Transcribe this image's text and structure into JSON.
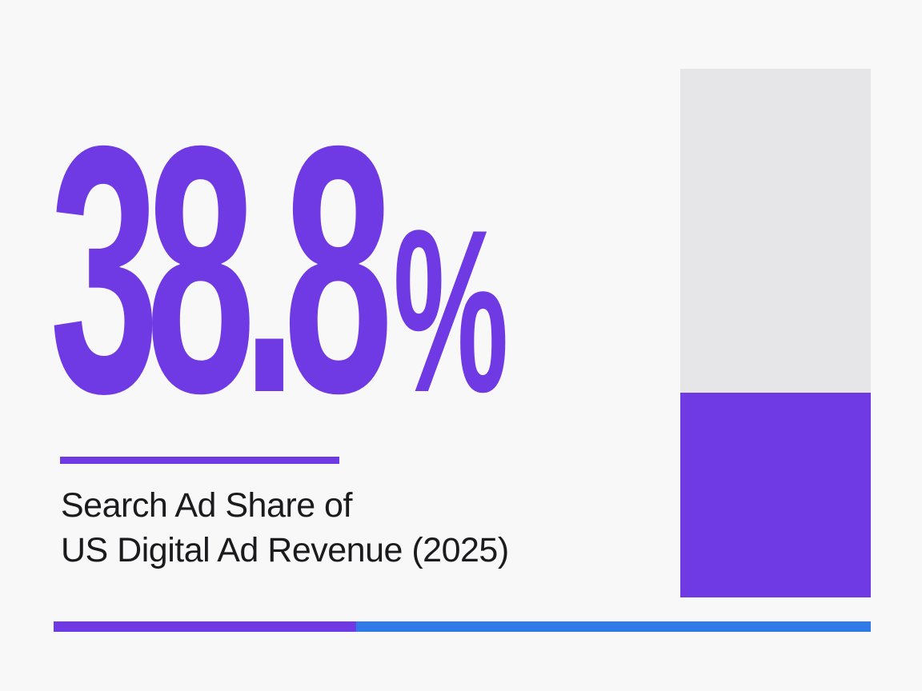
{
  "chart_data": {
    "type": "bar",
    "value_label": "38.8",
    "unit": "%",
    "title_lines": [
      "Search Ad Share of",
      "US Digital Ad Revenue (2025)"
    ],
    "series": [
      {
        "values": [
          38.8
        ]
      }
    ],
    "ylim": [
      0,
      100
    ]
  },
  "colors": {
    "accent": "#6f39e3",
    "track": "#e6e6e9",
    "secondary": "#2f7ae6",
    "text": "#1b1b1d",
    "background": "#f8f8f9"
  }
}
